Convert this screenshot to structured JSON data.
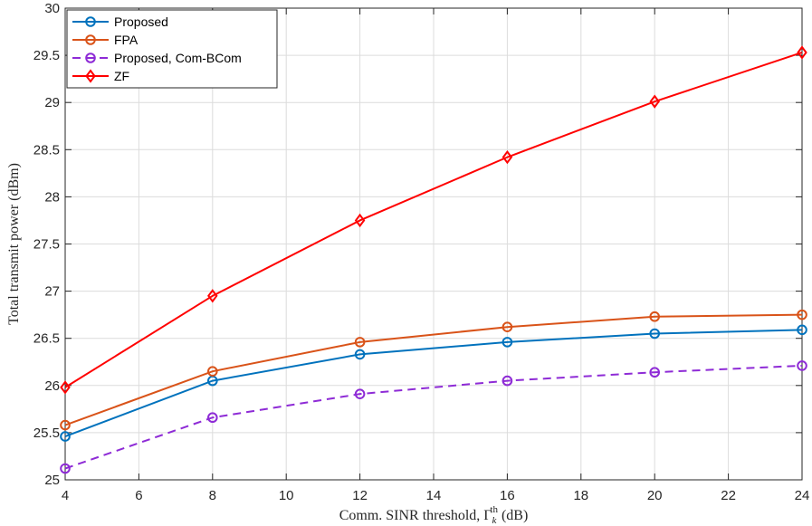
{
  "chart_data": {
    "type": "line",
    "x": [
      4,
      8,
      12,
      16,
      20,
      24
    ],
    "series": [
      {
        "name": "Proposed",
        "color": "#0072BD",
        "marker": "circle",
        "dash": "solid",
        "values": [
          25.46,
          26.05,
          26.33,
          26.46,
          26.55,
          26.59
        ]
      },
      {
        "name": "FPA",
        "color": "#D95319",
        "marker": "circle",
        "dash": "solid",
        "values": [
          25.58,
          26.15,
          26.46,
          26.62,
          26.73,
          26.75
        ]
      },
      {
        "name": "Proposed, Com-BCom",
        "color": "#8E2BD6",
        "marker": "circle",
        "dash": "dashed",
        "values": [
          25.12,
          25.66,
          25.91,
          26.05,
          26.14,
          26.21
        ]
      },
      {
        "name": "ZF",
        "color": "#FF0000",
        "marker": "diamond",
        "dash": "solid",
        "values": [
          25.98,
          26.95,
          27.75,
          28.42,
          29.01,
          29.53
        ]
      }
    ],
    "xlim": [
      4,
      24
    ],
    "ylim": [
      25,
      30
    ],
    "xticks": [
      4,
      6,
      8,
      10,
      12,
      14,
      16,
      18,
      20,
      22,
      24
    ],
    "yticks": [
      25,
      25.5,
      26,
      26.5,
      27,
      27.5,
      28,
      28.5,
      29,
      29.5,
      30
    ],
    "xlabel": "Comm. SINR threshold, Γ",
    "xlabel_sub": "k",
    "xlabel_sup": "th",
    "xlabel_suffix": " (dB)",
    "ylabel": "Total transmit power (dBm)",
    "grid": true,
    "legend": "top-left"
  }
}
